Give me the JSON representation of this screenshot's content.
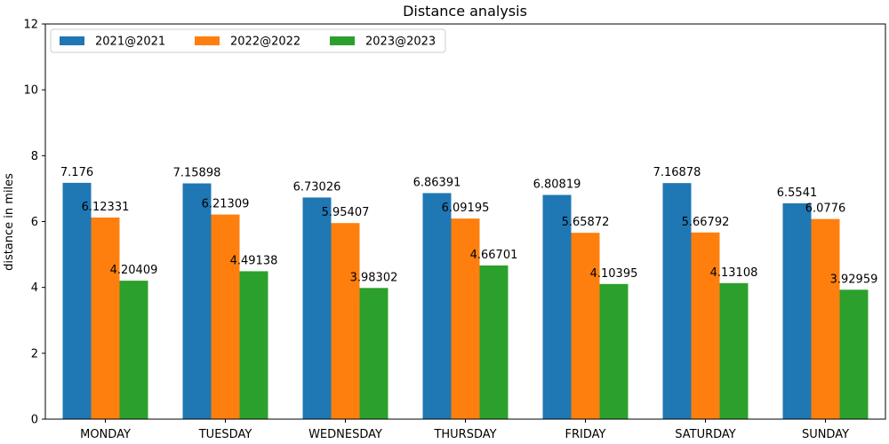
{
  "chart_data": {
    "type": "bar",
    "title": "Distance analysis",
    "xlabel": "",
    "ylabel": "distance in miles",
    "ylim": [
      0,
      12
    ],
    "yticks": [
      0,
      2,
      4,
      6,
      8,
      10,
      12
    ],
    "grid": false,
    "legend_position": "top-left",
    "categories": [
      "MONDAY",
      "TUESDAY",
      "WEDNESDAY",
      "THURSDAY",
      "FRIDAY",
      "SATURDAY",
      "SUNDAY"
    ],
    "series": [
      {
        "name": "2021@2021",
        "color": "#1f77b4",
        "values": [
          7.176,
          7.15898,
          6.73026,
          6.86391,
          6.80819,
          7.16878,
          6.5541
        ]
      },
      {
        "name": "2022@2022",
        "color": "#ff7f0e",
        "values": [
          6.12331,
          6.21309,
          5.95407,
          6.09195,
          5.65872,
          5.66792,
          6.0776
        ]
      },
      {
        "name": "2023@2023",
        "color": "#2ca02c",
        "values": [
          4.20409,
          4.49138,
          3.98302,
          4.66701,
          4.10395,
          4.13108,
          3.92959
        ]
      }
    ]
  }
}
